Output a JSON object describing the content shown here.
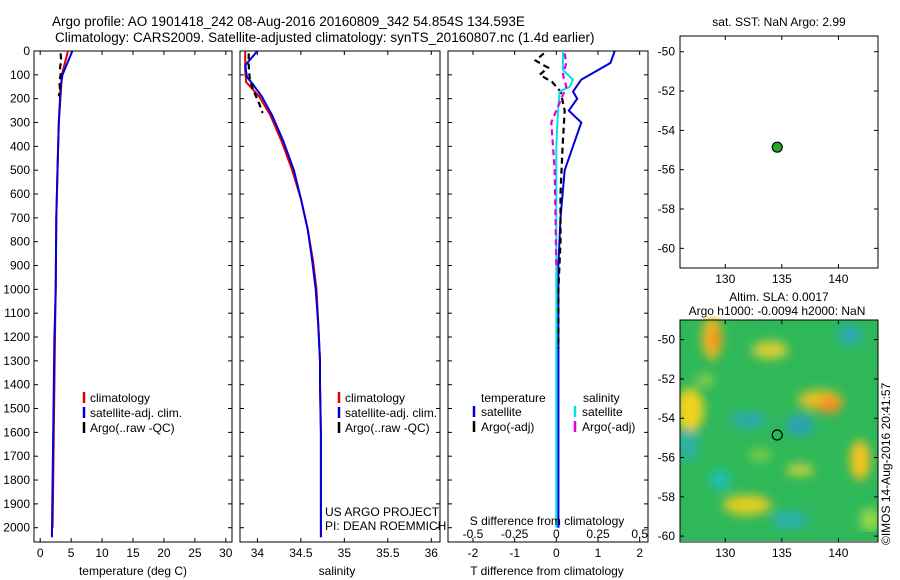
{
  "header": {
    "title_line1": "Argo profile: AO 1901418_242 08-Aug-2016 20160809_342 54.854S 134.593E",
    "title_line2": "Climatology: CARS2009. Satellite-adjusted climatology: synTS_20160807.nc (1.4d earlier)"
  },
  "colors": {
    "climatology": "#e00000",
    "satellite": "#0000dd",
    "argo": "#000000",
    "satellite_salinity": "#00e5e5",
    "argo_salinity": "#e000e0",
    "marker": "#22aa22"
  },
  "chart_data": [
    {
      "type": "line",
      "panel": "temperature",
      "xlabel": "temperature (deg C)",
      "xlim": [
        -1,
        31
      ],
      "xticks": [
        0,
        5,
        10,
        15,
        20,
        25,
        30
      ],
      "ylim": [
        2060,
        0
      ],
      "yticks": [
        0,
        100,
        200,
        300,
        400,
        500,
        600,
        700,
        800,
        900,
        1000,
        1100,
        1200,
        1300,
        1400,
        1500,
        1600,
        1700,
        1800,
        1900,
        2000
      ],
      "legend": [
        "climatology",
        "satellite-adj. clim.",
        "Argo(..raw -QC)"
      ],
      "series": [
        {
          "name": "climatology",
          "color": "#e00000",
          "x": [
            4.5,
            4.0,
            3.5,
            3.4,
            3.0,
            2.8,
            2.6,
            2.5,
            2.4,
            2.3,
            2.2,
            2.1,
            2.0
          ],
          "y": [
            0,
            50,
            100,
            150,
            300,
            500,
            700,
            1000,
            1200,
            1400,
            1600,
            1800,
            2000
          ]
        },
        {
          "name": "satellite-adj. clim.",
          "color": "#0000dd",
          "x": [
            5.2,
            4.4,
            3.6,
            3.3,
            3.0,
            2.8,
            2.6,
            2.5,
            2.3,
            2.2,
            2.1,
            2.0,
            1.9
          ],
          "y": [
            0,
            50,
            100,
            150,
            300,
            500,
            700,
            1000,
            1200,
            1400,
            1600,
            1800,
            2040
          ]
        },
        {
          "name": "Argo(..raw -QC)",
          "color": "#000000",
          "dash": true,
          "x": [
            3.3,
            3.4,
            3.2,
            3.3,
            3.1,
            3.2,
            3.0
          ],
          "y": [
            10,
            40,
            70,
            100,
            130,
            160,
            190
          ]
        }
      ]
    },
    {
      "type": "line",
      "panel": "salinity",
      "xlabel": "salinity",
      "xlim": [
        33.8,
        36.1
      ],
      "xticks": [
        34,
        34.5,
        35,
        35.5,
        36
      ],
      "ylim": [
        2060,
        0
      ],
      "legend": [
        "climatology",
        "satellite-adj. clim.",
        "Argo(..raw -QC)"
      ],
      "annotation": [
        "US ARGO PROJECT",
        "PI: DEAN ROEMMICH"
      ],
      "series": [
        {
          "name": "climatology",
          "color": "#e00000",
          "x": [
            33.86,
            33.86,
            33.87,
            33.92,
            34.02,
            34.15,
            34.28,
            34.4,
            34.5,
            34.58,
            34.64,
            34.68,
            34.7,
            34.72,
            34.72,
            34.73,
            34.73,
            34.73
          ],
          "y": [
            0,
            80,
            130,
            150,
            190,
            270,
            380,
            500,
            620,
            750,
            880,
            1000,
            1150,
            1300,
            1400,
            1600,
            1800,
            2040
          ]
        },
        {
          "name": "satellite-adj. clim.",
          "color": "#0000dd",
          "x": [
            34.0,
            33.86,
            33.88,
            33.95,
            34.05,
            34.17,
            34.3,
            34.42,
            34.5,
            34.58,
            34.63,
            34.67,
            34.7,
            34.72,
            34.72,
            34.73,
            34.73,
            34.73
          ],
          "y": [
            0,
            60,
            110,
            140,
            190,
            270,
            380,
            500,
            620,
            750,
            880,
            1000,
            1150,
            1300,
            1400,
            1600,
            1800,
            2040
          ]
        },
        {
          "name": "Argo(..raw -QC)",
          "color": "#000000",
          "dash": true,
          "x": [
            33.9,
            33.9,
            33.91,
            33.93,
            33.96,
            34.02,
            34.06
          ],
          "y": [
            10,
            60,
            110,
            140,
            170,
            220,
            260
          ]
        }
      ]
    },
    {
      "type": "line",
      "panel": "difference",
      "xlabel_bottom": "T difference from climatology",
      "xlabel_top": "S difference from climatology",
      "xlim_T": [
        -2.6,
        2.2
      ],
      "xticks_T": [
        -2,
        -1,
        0,
        1,
        2
      ],
      "xticks_S": [
        -0.5,
        -0.25,
        0,
        0.25,
        0.5
      ],
      "ylim": [
        2060,
        0
      ],
      "legend_temperature_title": "temperature",
      "legend_salinity_title": "salinity",
      "legend_temperature": [
        "satellite",
        "Argo(-adj)"
      ],
      "legend_salinity": [
        "satellite",
        "Argo(-adj)"
      ],
      "series": [
        {
          "name": "satellite",
          "group": "temperature",
          "color": "#0000dd",
          "x": [
            1.4,
            1.3,
            0.9,
            0.6,
            0.4,
            0.5,
            0.3,
            0.6,
            0.4,
            0.2,
            0.1,
            0.05,
            0.05,
            0.05,
            0.05
          ],
          "y": [
            0,
            50,
            90,
            120,
            170,
            200,
            250,
            300,
            400,
            500,
            700,
            900,
            1200,
            1600,
            2000
          ]
        },
        {
          "name": "Argo(-adj)",
          "group": "temperature",
          "color": "#000000",
          "dash": true,
          "x": [
            -0.3,
            -0.5,
            -0.2,
            -0.4,
            -0.1,
            0.1,
            0.2,
            0.15,
            0.1,
            0.1,
            0.05,
            0.05
          ],
          "y": [
            10,
            40,
            70,
            100,
            130,
            170,
            250,
            400,
            600,
            800,
            1000,
            1250
          ]
        },
        {
          "name": "satellite",
          "group": "salinity",
          "color": "#00e5e5",
          "x": [
            0.04,
            0.04,
            0.1,
            0.08,
            0.02,
            0.01,
            0.0,
            0.0,
            0.0,
            0.0,
            0.0
          ],
          "y": [
            0,
            80,
            120,
            150,
            170,
            250,
            400,
            700,
            1000,
            1500,
            2000
          ]
        },
        {
          "name": "Argo(-adj)",
          "group": "salinity",
          "color": "#e000e0",
          "dash": true,
          "x": [
            0.05,
            0.06,
            0.04,
            0.06,
            0.03,
            -0.03,
            -0.01,
            0.0
          ],
          "y": [
            10,
            50,
            100,
            150,
            200,
            300,
            500,
            900
          ]
        }
      ]
    },
    {
      "type": "scatter",
      "panel": "position",
      "title": "sat. SST: NaN Argo: 2.99",
      "xlim": [
        126,
        143.5
      ],
      "xticks": [
        130,
        135,
        140
      ],
      "ylim": [
        -61,
        -49.2
      ],
      "yticks": [
        -50,
        -52,
        -54,
        -56,
        -58,
        -60
      ],
      "points": [
        {
          "x": 134.593,
          "y": -54.854
        }
      ]
    },
    {
      "type": "heatmap",
      "panel": "altimetry",
      "title_line1": "Altim. SLA: 0.0017",
      "title_line2": "Argo h1000: -0.0094 h2000: NaN",
      "xlim": [
        126,
        143.5
      ],
      "xticks": [
        130,
        135,
        140
      ],
      "ylim": [
        -60.3,
        -49
      ],
      "yticks": [
        -50,
        -52,
        -54,
        -56,
        -58,
        -60
      ],
      "points": [
        {
          "x": 134.593,
          "y": -54.854
        }
      ]
    }
  ],
  "footer": {
    "stamp": "©IMOS 14-Aug-2016 20:41:57"
  }
}
